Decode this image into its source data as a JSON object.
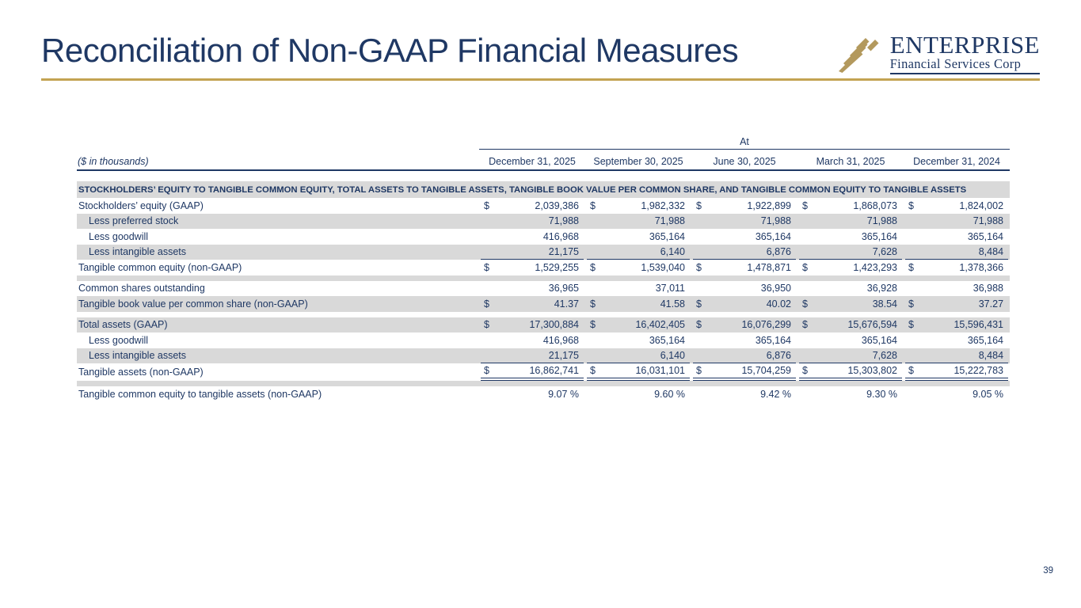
{
  "slide": {
    "title": "Reconciliation of Non-GAAP Financial Measures",
    "page_number": "39"
  },
  "logo": {
    "name": "ENTERPRISE",
    "subtitle": "Financial Services Corp"
  },
  "colors": {
    "navy": "#1F3864",
    "gold_line": "#C3A352",
    "logo_gold": "#B3995D",
    "row_gray": "#D9D9D9"
  },
  "table": {
    "units_note": "($ in thousands)",
    "period_label": "At",
    "columns": [
      "December 31, 2025",
      "September 30, 2025",
      "June 30, 2025",
      "March 31, 2025",
      "December 31, 2024"
    ],
    "section_header": "STOCKHOLDERS’ EQUITY TO TANGIBLE COMMON EQUITY, TOTAL ASSETS TO TANGIBLE ASSETS, TANGIBLE BOOK VALUE PER COMMON SHARE, AND TANGIBLE COMMON EQUITY TO TANGIBLE ASSETS",
    "rows": [
      {
        "label": "Stockholders’ equity (GAAP)",
        "dollar": true,
        "indent": false,
        "shade": "white",
        "values": [
          "2,039,386",
          "1,982,332",
          "1,922,899",
          "1,868,073",
          "1,824,002"
        ]
      },
      {
        "label": "Less preferred stock",
        "dollar": false,
        "indent": true,
        "shade": "gray",
        "values": [
          "71,988",
          "71,988",
          "71,988",
          "71,988",
          "71,988"
        ]
      },
      {
        "label": "Less goodwill",
        "dollar": false,
        "indent": true,
        "shade": "white",
        "values": [
          "416,968",
          "365,164",
          "365,164",
          "365,164",
          "365,164"
        ]
      },
      {
        "label": "Less intangible assets",
        "dollar": false,
        "indent": true,
        "shade": "gray",
        "underline": "single",
        "values": [
          "21,175",
          "6,140",
          "6,876",
          "7,628",
          "8,484"
        ]
      },
      {
        "label": "Tangible common equity (non-GAAP)",
        "dollar": true,
        "indent": false,
        "shade": "white",
        "values": [
          "1,529,255",
          "1,539,040",
          "1,478,871",
          "1,423,293",
          "1,378,366"
        ]
      },
      {
        "spacer": "gray"
      },
      {
        "label": "Common shares outstanding",
        "dollar": false,
        "indent": false,
        "shade": "white",
        "values": [
          "36,965",
          "37,011",
          "36,950",
          "36,928",
          "36,988"
        ]
      },
      {
        "label": "Tangible book value per common share (non-GAAP)",
        "dollar": true,
        "indent": false,
        "shade": "gray",
        "values": [
          "41.37",
          "41.58",
          "40.02",
          "38.54",
          "37.27"
        ]
      },
      {
        "spacer": "white"
      },
      {
        "label": "Total assets (GAAP)",
        "dollar": true,
        "indent": false,
        "shade": "gray",
        "values": [
          "17,300,884",
          "16,402,405",
          "16,076,299",
          "15,676,594",
          "15,596,431"
        ]
      },
      {
        "label": "Less goodwill",
        "dollar": false,
        "indent": true,
        "shade": "white",
        "values": [
          "416,968",
          "365,164",
          "365,164",
          "365,164",
          "365,164"
        ]
      },
      {
        "label": "Less intangible assets",
        "dollar": false,
        "indent": true,
        "shade": "gray",
        "underline": "single",
        "values": [
          "21,175",
          "6,140",
          "6,876",
          "7,628",
          "8,484"
        ]
      },
      {
        "label": "Tangible assets (non-GAAP)",
        "dollar": true,
        "indent": false,
        "shade": "white",
        "underline": "double",
        "values": [
          "16,862,741",
          "16,031,101",
          "15,704,259",
          "15,303,802",
          "15,222,783"
        ]
      },
      {
        "spacer": "gray"
      },
      {
        "label": "Tangible common equity to tangible assets (non-GAAP)",
        "dollar": false,
        "indent": false,
        "shade": "white",
        "suffix": " %",
        "values": [
          "9.07",
          "9.60",
          "9.42",
          "9.30",
          "9.05"
        ]
      }
    ]
  }
}
